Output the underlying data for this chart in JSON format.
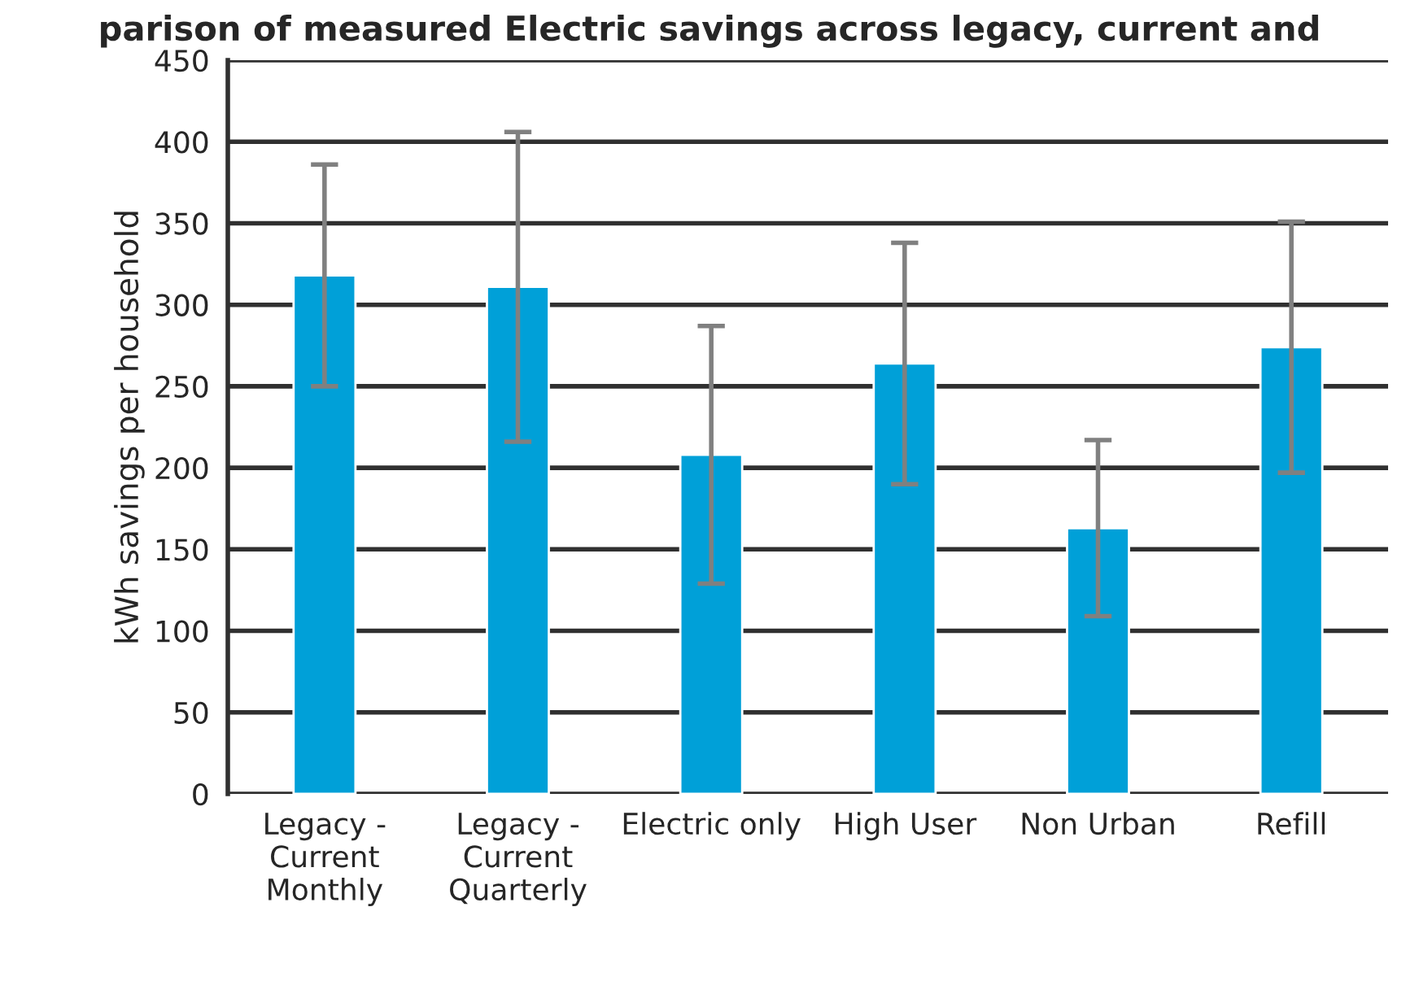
{
  "chart_data": {
    "type": "bar",
    "title": "parison of measured Electric savings across legacy, current and",
    "ylabel": "kWh savings per household",
    "categories": [
      "Legacy -\nCurrent\nMonthly",
      "Legacy -\nCurrent\nQuarterly",
      "Electric only",
      "High User",
      "Non Urban",
      "Refill"
    ],
    "values": [
      318,
      311,
      208,
      264,
      163,
      274
    ],
    "errors": [
      68,
      95,
      79,
      74,
      54,
      77
    ],
    "color": "#00a0d8",
    "ylim": [
      0,
      450
    ],
    "yticks": [
      0,
      50,
      100,
      150,
      200,
      250,
      300,
      350,
      400,
      450
    ],
    "grid": "y",
    "legend": false
  }
}
